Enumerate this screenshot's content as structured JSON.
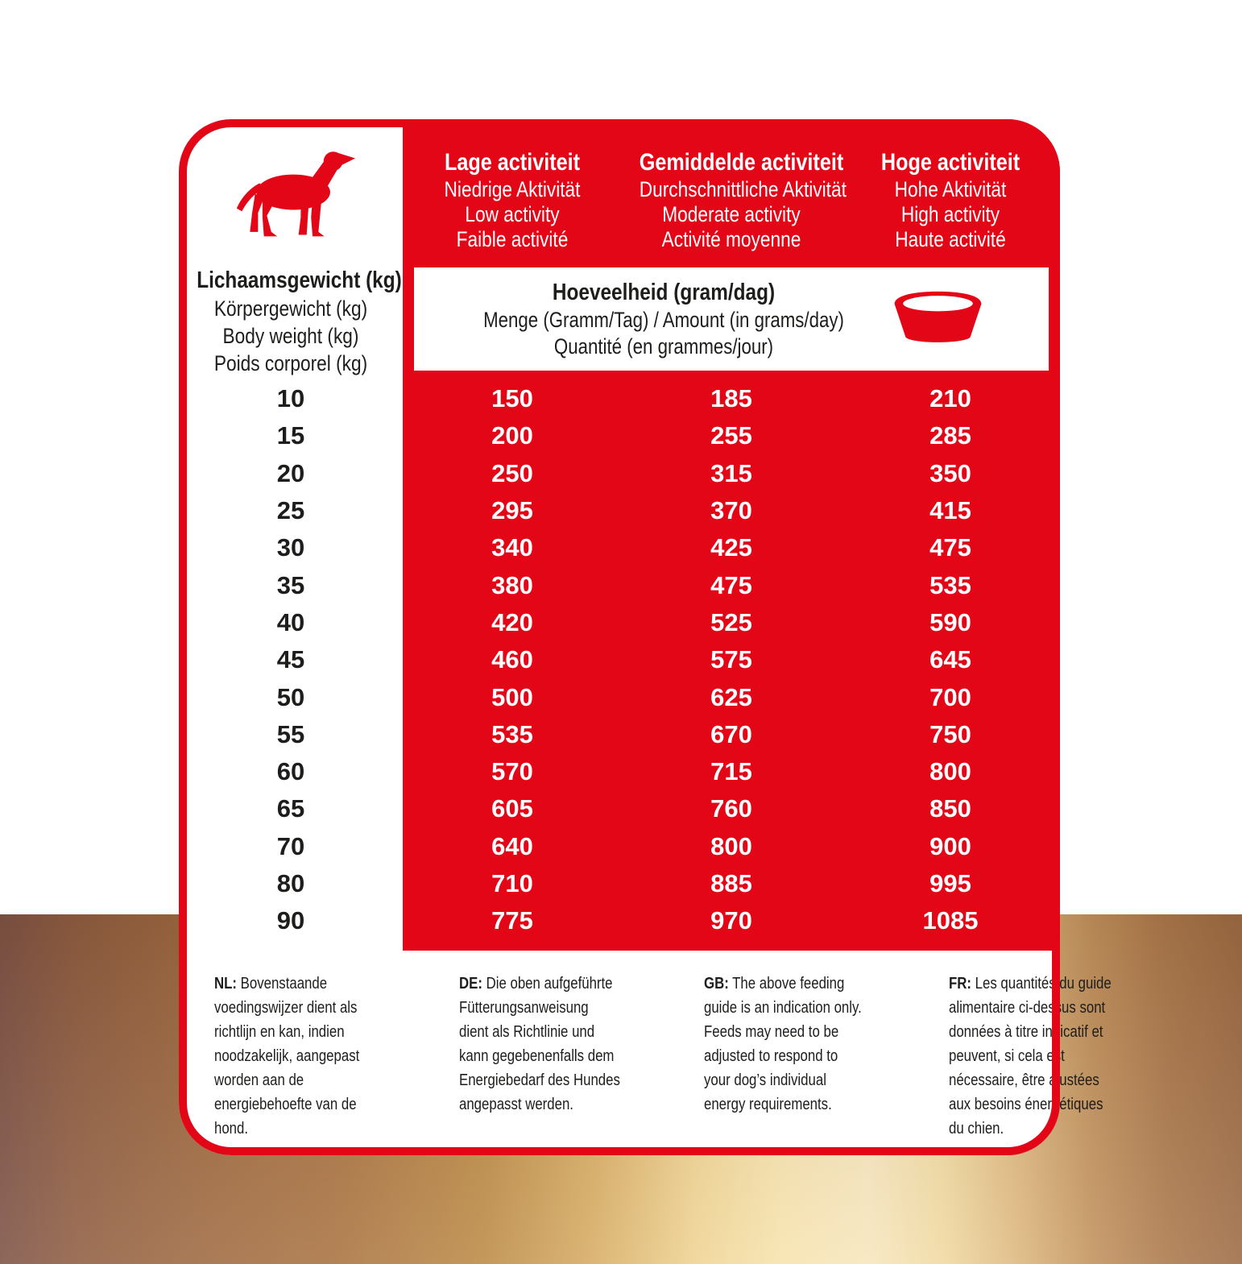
{
  "colors": {
    "brand_red": "#e30617",
    "text_black": "#1d1d1b",
    "white": "#ffffff",
    "band_browns": [
      "#7d5245",
      "#a97240",
      "#f7e3ae",
      "#9d6b44"
    ]
  },
  "card": {
    "weight_header": {
      "title": "Lichaamsgewicht (kg)",
      "subtitles": [
        "Körpergewicht (kg)",
        "Body weight (kg)",
        "Poids corporel (kg)"
      ]
    },
    "activity_columns": [
      {
        "title": "Lage activiteit",
        "subtitles": [
          "Niedrige Aktivität",
          "Low activity",
          "Faible activité"
        ]
      },
      {
        "title": "Gemiddelde activiteit",
        "subtitles": [
          "Durchschnittliche Aktivität",
          "Moderate activity",
          "Activité moyenne"
        ]
      },
      {
        "title": "Hoge activiteit",
        "subtitles": [
          "Hohe Aktivität",
          "High activity",
          "Haute activité"
        ]
      }
    ],
    "amount_header": {
      "title": "Hoeveelheid (gram/dag)",
      "subtitles": [
        "Menge (Gramm/Tag) / Amount (in grams/day)",
        "Quantité (en grammes/jour)"
      ]
    },
    "table": {
      "weights": [
        10,
        15,
        20,
        25,
        30,
        35,
        40,
        45,
        50,
        55,
        60,
        65,
        70,
        80,
        90
      ],
      "series": [
        {
          "activity": "Lage activiteit",
          "values": [
            150,
            200,
            250,
            295,
            340,
            380,
            420,
            460,
            500,
            535,
            570,
            605,
            640,
            710,
            775
          ]
        },
        {
          "activity": "Gemiddelde activiteit",
          "values": [
            185,
            255,
            315,
            370,
            425,
            475,
            525,
            575,
            625,
            670,
            715,
            760,
            800,
            885,
            970
          ]
        },
        {
          "activity": "Hoge activiteit",
          "values": [
            210,
            285,
            350,
            415,
            475,
            535,
            590,
            645,
            700,
            750,
            800,
            850,
            900,
            995,
            1085
          ]
        }
      ]
    },
    "notes": [
      {
        "prefix": "NL:",
        "lines": [
          "Bovenstaande",
          "voedingswijzer dient als",
          "richtlijn en kan, indien",
          "noodzakelijk, aangepast",
          "worden aan de",
          "energiebehoefte van de",
          "hond."
        ]
      },
      {
        "prefix": "DE:",
        "lines": [
          "Die oben aufgeführte",
          "Fütterungsanweisung",
          "dient als Richtlinie und",
          "kann gegebenenfalls dem",
          "Energiebedarf des Hundes",
          "angepasst werden."
        ]
      },
      {
        "prefix": "GB:",
        "lines": [
          "The above feeding",
          "guide is an indication only.",
          "Feeds may need to be",
          "adjusted to respond to",
          "your dog’s individual",
          "energy requirements."
        ]
      },
      {
        "prefix": "FR:",
        "lines": [
          "Les quantités du guide",
          "alimentaire ci-dessus sont",
          "données à titre indicatif et",
          "peuvent, si cela est",
          "nécessaire, être ajustées",
          "aux besoins énergétiques",
          "du chien."
        ]
      }
    ],
    "icons": {
      "dog": "dog-silhouette",
      "bowl": "dog-food-bowl"
    }
  }
}
